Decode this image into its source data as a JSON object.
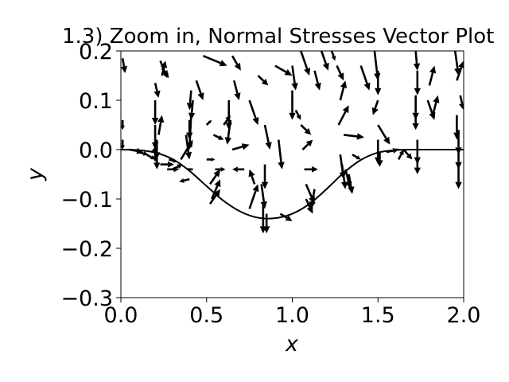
{
  "chart_data": {
    "type": "quiver",
    "title": "1.3) Zoom in, Normal Stresses Vector Plot",
    "xlabel": "x",
    "ylabel": "y",
    "xlim": [
      0.0,
      2.0
    ],
    "ylim": [
      -0.3,
      0.2
    ],
    "x_ticks": [
      {
        "value": 0.0,
        "label": "0.0"
      },
      {
        "value": 0.5,
        "label": "0.5"
      },
      {
        "value": 1.0,
        "label": "1.0"
      },
      {
        "value": 1.5,
        "label": "1.5"
      },
      {
        "value": 2.0,
        "label": "2.0"
      }
    ],
    "y_ticks": [
      {
        "value": 0.2,
        "label": "0.2"
      },
      {
        "value": 0.1,
        "label": "0.1"
      },
      {
        "value": 0.0,
        "label": "0.0"
      },
      {
        "value": -0.1,
        "label": "−0.1"
      },
      {
        "value": -0.2,
        "label": "−0.2"
      },
      {
        "value": -0.3,
        "label": "−0.3"
      }
    ],
    "grid": false,
    "color": "#000000",
    "boundary_curve": {
      "x": [
        0.0,
        0.1,
        0.2,
        0.3,
        0.4,
        0.5,
        0.6,
        0.7,
        0.8,
        0.9,
        1.0,
        1.1,
        1.2,
        1.3,
        1.4,
        1.5,
        1.6,
        1.7,
        1.8,
        1.9,
        2.0
      ],
      "y": [
        0.0,
        -0.001,
        -0.006,
        -0.019,
        -0.043,
        -0.074,
        -0.104,
        -0.126,
        -0.138,
        -0.139,
        -0.13,
        -0.11,
        -0.08,
        -0.047,
        -0.021,
        -0.006,
        -0.001,
        0.0,
        0.0,
        0.0,
        0.0
      ]
    },
    "vectors": [
      {
        "x": 0.01,
        "y": 0.185,
        "u": 0.015,
        "v": -0.03
      },
      {
        "x": 0.01,
        "y": 0.06,
        "u": 0.0,
        "v": -0.02
      },
      {
        "x": 0.01,
        "y": 0.02,
        "u": 0.0,
        "v": -0.02
      },
      {
        "x": 0.05,
        "y": 0.0,
        "u": 0.08,
        "v": -0.005
      },
      {
        "x": 0.1,
        "y": -0.005,
        "u": 0.06,
        "v": -0.005
      },
      {
        "x": 0.15,
        "y": -0.01,
        "u": 0.05,
        "v": -0.01
      },
      {
        "x": 0.18,
        "y": -0.005,
        "u": 0.03,
        "v": 0.01
      },
      {
        "x": 0.2,
        "y": 0.135,
        "u": 0.02,
        "v": -0.03
      },
      {
        "x": 0.2,
        "y": 0.1,
        "u": 0.0,
        "v": -0.05
      },
      {
        "x": 0.2,
        "y": 0.05,
        "u": 0.0,
        "v": -0.05
      },
      {
        "x": 0.2,
        "y": 0.0,
        "u": 0.0,
        "v": -0.025
      },
      {
        "x": 0.23,
        "y": 0.18,
        "u": 0.04,
        "v": -0.035
      },
      {
        "x": 0.28,
        "y": -0.02,
        "u": 0.05,
        "v": -0.005
      },
      {
        "x": 0.3,
        "y": -0.04,
        "u": 0.06,
        "v": 0.01
      },
      {
        "x": 0.35,
        "y": -0.02,
        "u": 0.07,
        "v": 0.04
      },
      {
        "x": 0.38,
        "y": 0.03,
        "u": 0.02,
        "v": -0.05
      },
      {
        "x": 0.4,
        "y": 0.06,
        "u": 0.0,
        "v": -0.04
      },
      {
        "x": 0.41,
        "y": 0.12,
        "u": -0.01,
        "v": -0.04
      },
      {
        "x": 0.24,
        "y": 0.15,
        "u": 0.02,
        "v": 0.03
      },
      {
        "x": 0.22,
        "y": 0.03,
        "u": 0.02,
        "v": 0.04
      },
      {
        "x": 0.42,
        "y": -0.04,
        "u": -0.04,
        "v": 0.0
      },
      {
        "x": 0.23,
        "y": -0.03,
        "u": 0.08,
        "v": 0.0
      },
      {
        "x": 0.27,
        "y": -0.04,
        "u": 0.07,
        "v": 0.0
      },
      {
        "x": 0.4,
        "y": -0.06,
        "u": -0.06,
        "v": -0.005
      },
      {
        "x": 0.42,
        "y": 0.1,
        "u": -0.01,
        "v": -0.04
      },
      {
        "x": 0.21,
        "y": 0.02,
        "u": 0.0,
        "v": -0.04
      },
      {
        "x": 0.21,
        "y": -0.01,
        "u": 0.0,
        "v": -0.03
      },
      {
        "x": 0.24,
        "y": 0.165,
        "u": 0.04,
        "v": -0.02
      },
      {
        "x": 0.44,
        "y": 0.14,
        "u": 0.04,
        "v": -0.04
      },
      {
        "x": 0.41,
        "y": 0.07,
        "u": -0.01,
        "v": -0.07
      },
      {
        "x": 0.48,
        "y": 0.19,
        "u": 0.14,
        "v": -0.02
      },
      {
        "x": 0.5,
        "y": 0.05,
        "u": 0.03,
        "v": 0.01
      },
      {
        "x": 0.5,
        "y": -0.02,
        "u": 0.05,
        "v": 0.0
      },
      {
        "x": 0.52,
        "y": -0.07,
        "u": 0.06,
        "v": 0.03
      },
      {
        "x": 0.53,
        "y": -0.1,
        "u": 0.05,
        "v": 0.04
      },
      {
        "x": 0.52,
        "y": -0.11,
        "u": 0.06,
        "v": 0.03
      },
      {
        "x": 0.54,
        "y": 0.03,
        "u": 0.06,
        "v": -0.01
      },
      {
        "x": 0.55,
        "y": -0.04,
        "u": 0.06,
        "v": 0.0
      },
      {
        "x": 0.6,
        "y": 0.05,
        "u": 0.04,
        "v": 0.02
      },
      {
        "x": 0.63,
        "y": 0.1,
        "u": 0.0,
        "v": -0.06
      },
      {
        "x": 0.65,
        "y": 0.19,
        "u": 0.05,
        "v": -0.03
      },
      {
        "x": 0.66,
        "y": 0.14,
        "u": 0.03,
        "v": -0.04
      },
      {
        "x": 0.64,
        "y": 0.06,
        "u": -0.02,
        "v": -0.05
      },
      {
        "x": 0.65,
        "y": 0.0,
        "u": 0.1,
        "v": 0.01
      },
      {
        "x": 0.72,
        "y": -0.04,
        "u": -0.07,
        "v": 0.0
      },
      {
        "x": 0.75,
        "y": 0.1,
        "u": 0.05,
        "v": -0.05
      },
      {
        "x": 0.78,
        "y": -0.07,
        "u": -0.03,
        "v": 0.03
      },
      {
        "x": 0.75,
        "y": -0.12,
        "u": 0.05,
        "v": 0.05
      },
      {
        "x": 0.8,
        "y": 0.15,
        "u": 0.06,
        "v": -0.02
      },
      {
        "x": 0.82,
        "y": -0.07,
        "u": 0.02,
        "v": -0.05
      },
      {
        "x": 0.84,
        "y": 0.05,
        "u": 0.03,
        "v": -0.05
      },
      {
        "x": 0.84,
        "y": -0.03,
        "u": 0.0,
        "v": -0.05
      },
      {
        "x": 0.85,
        "y": -0.13,
        "u": 0.0,
        "v": -0.04
      },
      {
        "x": 0.83,
        "y": -0.11,
        "u": 0.0,
        "v": -0.06
      },
      {
        "x": 0.9,
        "y": 0.17,
        "u": 0.1,
        "v": -0.02
      },
      {
        "x": 0.92,
        "y": 0.02,
        "u": 0.02,
        "v": -0.06
      },
      {
        "x": 0.93,
        "y": -0.13,
        "u": 0.07,
        "v": -0.015
      },
      {
        "x": 1.0,
        "y": 0.17,
        "u": 0.02,
        "v": -0.05
      },
      {
        "x": 1.0,
        "y": 0.12,
        "u": 0.0,
        "v": -0.06
      },
      {
        "x": 1.02,
        "y": 0.08,
        "u": 0.03,
        "v": -0.02
      },
      {
        "x": 1.05,
        "y": 0.05,
        "u": 0.06,
        "v": -0.02
      },
      {
        "x": 1.06,
        "y": 0.0,
        "u": 0.06,
        "v": 0.02
      },
      {
        "x": 1.07,
        "y": -0.04,
        "u": 0.08,
        "v": 0.0
      },
      {
        "x": 1.08,
        "y": -0.07,
        "u": 0.05,
        "v": -0.04
      },
      {
        "x": 1.08,
        "y": -0.1,
        "u": 0.04,
        "v": -0.03
      },
      {
        "x": 1.05,
        "y": 0.2,
        "u": 0.05,
        "v": -0.05
      },
      {
        "x": 1.13,
        "y": 0.16,
        "u": 0.03,
        "v": -0.04
      },
      {
        "x": 1.13,
        "y": -0.08,
        "u": -0.02,
        "v": -0.04
      },
      {
        "x": 1.17,
        "y": 0.2,
        "u": 0.04,
        "v": -0.04
      },
      {
        "x": 1.23,
        "y": 0.2,
        "u": 0.02,
        "v": -0.02
      },
      {
        "x": 1.26,
        "y": 0.17,
        "u": 0.04,
        "v": -0.03
      },
      {
        "x": 1.28,
        "y": 0.1,
        "u": 0.03,
        "v": 0.04
      },
      {
        "x": 1.27,
        "y": 0.05,
        "u": 0.06,
        "v": 0.04
      },
      {
        "x": 1.3,
        "y": 0.03,
        "u": 0.12,
        "v": -0.005
      },
      {
        "x": 1.28,
        "y": -0.01,
        "u": 0.02,
        "v": -0.05
      },
      {
        "x": 1.29,
        "y": -0.03,
        "u": 0.02,
        "v": -0.05
      },
      {
        "x": 1.31,
        "y": -0.04,
        "u": 0.03,
        "v": -0.04
      },
      {
        "x": 1.33,
        "y": -0.05,
        "u": 0.02,
        "v": -0.04
      },
      {
        "x": 1.35,
        "y": -0.01,
        "u": 0.05,
        "v": -0.01
      },
      {
        "x": 1.4,
        "y": 0.17,
        "u": 0.05,
        "v": -0.05
      },
      {
        "x": 1.48,
        "y": 0.2,
        "u": 0.02,
        "v": -0.06
      },
      {
        "x": 1.5,
        "y": 0.16,
        "u": 0.0,
        "v": -0.05
      },
      {
        "x": 1.5,
        "y": 0.1,
        "u": -0.03,
        "v": -0.03
      },
      {
        "x": 1.5,
        "y": 0.05,
        "u": 0.07,
        "v": -0.04
      },
      {
        "x": 1.5,
        "y": 0.02,
        "u": 0.0,
        "v": -0.05
      },
      {
        "x": 1.51,
        "y": -0.005,
        "u": 0.0,
        "v": -0.03
      },
      {
        "x": 1.55,
        "y": -0.005,
        "u": 0.07,
        "v": 0.005
      },
      {
        "x": 1.62,
        "y": -0.02,
        "u": 0.03,
        "v": 0.02
      },
      {
        "x": 1.6,
        "y": 0.0,
        "u": 0.03,
        "v": 0.0
      },
      {
        "x": 1.65,
        "y": 0.0,
        "u": 0.05,
        "v": -0.02
      },
      {
        "x": 1.72,
        "y": 0.2,
        "u": 0.01,
        "v": -0.04
      },
      {
        "x": 1.73,
        "y": 0.16,
        "u": 0.0,
        "v": -0.05
      },
      {
        "x": 1.72,
        "y": 0.11,
        "u": 0.0,
        "v": -0.05
      },
      {
        "x": 1.72,
        "y": 0.07,
        "u": 0.0,
        "v": -0.03
      },
      {
        "x": 1.73,
        "y": 0.02,
        "u": 0.0,
        "v": -0.05
      },
      {
        "x": 1.73,
        "y": -0.02,
        "u": 0.0,
        "v": -0.03
      },
      {
        "x": 1.79,
        "y": 0.1,
        "u": 0.04,
        "v": -0.04
      },
      {
        "x": 1.82,
        "y": 0.07,
        "u": 0.03,
        "v": 0.04
      },
      {
        "x": 1.8,
        "y": 0.13,
        "u": 0.03,
        "v": 0.04
      },
      {
        "x": 1.95,
        "y": 0.2,
        "u": 0.02,
        "v": -0.05
      },
      {
        "x": 1.96,
        "y": 0.14,
        "u": 0.04,
        "v": 0.04
      },
      {
        "x": 1.96,
        "y": 0.07,
        "u": 0.0,
        "v": -0.05
      },
      {
        "x": 1.97,
        "y": 0.04,
        "u": 0.0,
        "v": -0.05
      },
      {
        "x": 1.97,
        "y": 0.0,
        "u": 0.0,
        "v": -0.04
      },
      {
        "x": 1.97,
        "y": -0.03,
        "u": 0.0,
        "v": -0.05
      },
      {
        "x": 1.98,
        "y": 0.11,
        "u": 0.02,
        "v": -0.03
      }
    ]
  }
}
